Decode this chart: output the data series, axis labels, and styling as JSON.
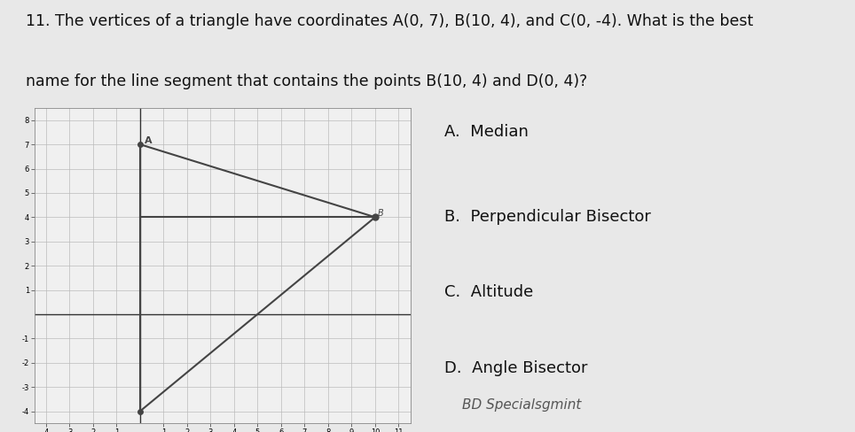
{
  "question_number": "11.",
  "question_line1": "The vertices of a triangle have coordinates A(0, 7), B(10, 4), and C(0, -4). What is the best",
  "question_line2": "name for the line segment that contains the points B(10, 4) and D(0, 4)?",
  "choices": [
    "A.  Median",
    "B.  Perpendicular Bisector",
    "C.  Altitude",
    "D.  Angle Bisector"
  ],
  "handwritten_note": "BD Specialsgmint",
  "bg_color": "#e8e8e8",
  "graph_bg": "#f0f0f0",
  "graph": {
    "xlim": [
      -4.5,
      11.5
    ],
    "ylim": [
      -4.5,
      8.5
    ],
    "xticks": [
      -4,
      -3,
      -2,
      -1,
      1,
      2,
      3,
      4,
      5,
      6,
      7,
      8,
      9,
      10,
      11
    ],
    "yticks": [
      -4,
      -3,
      -2,
      -1,
      1,
      2,
      3,
      4,
      5,
      6,
      7,
      8
    ],
    "A": [
      0,
      7
    ],
    "B": [
      10,
      4
    ],
    "C": [
      0,
      -4
    ],
    "D": [
      0,
      4
    ],
    "line_color": "#444444",
    "grid_color": "#bbbbbb",
    "axis_color": "#333333"
  },
  "text_color": "#111111",
  "font_size_q": 12.5,
  "font_size_choices": 13
}
